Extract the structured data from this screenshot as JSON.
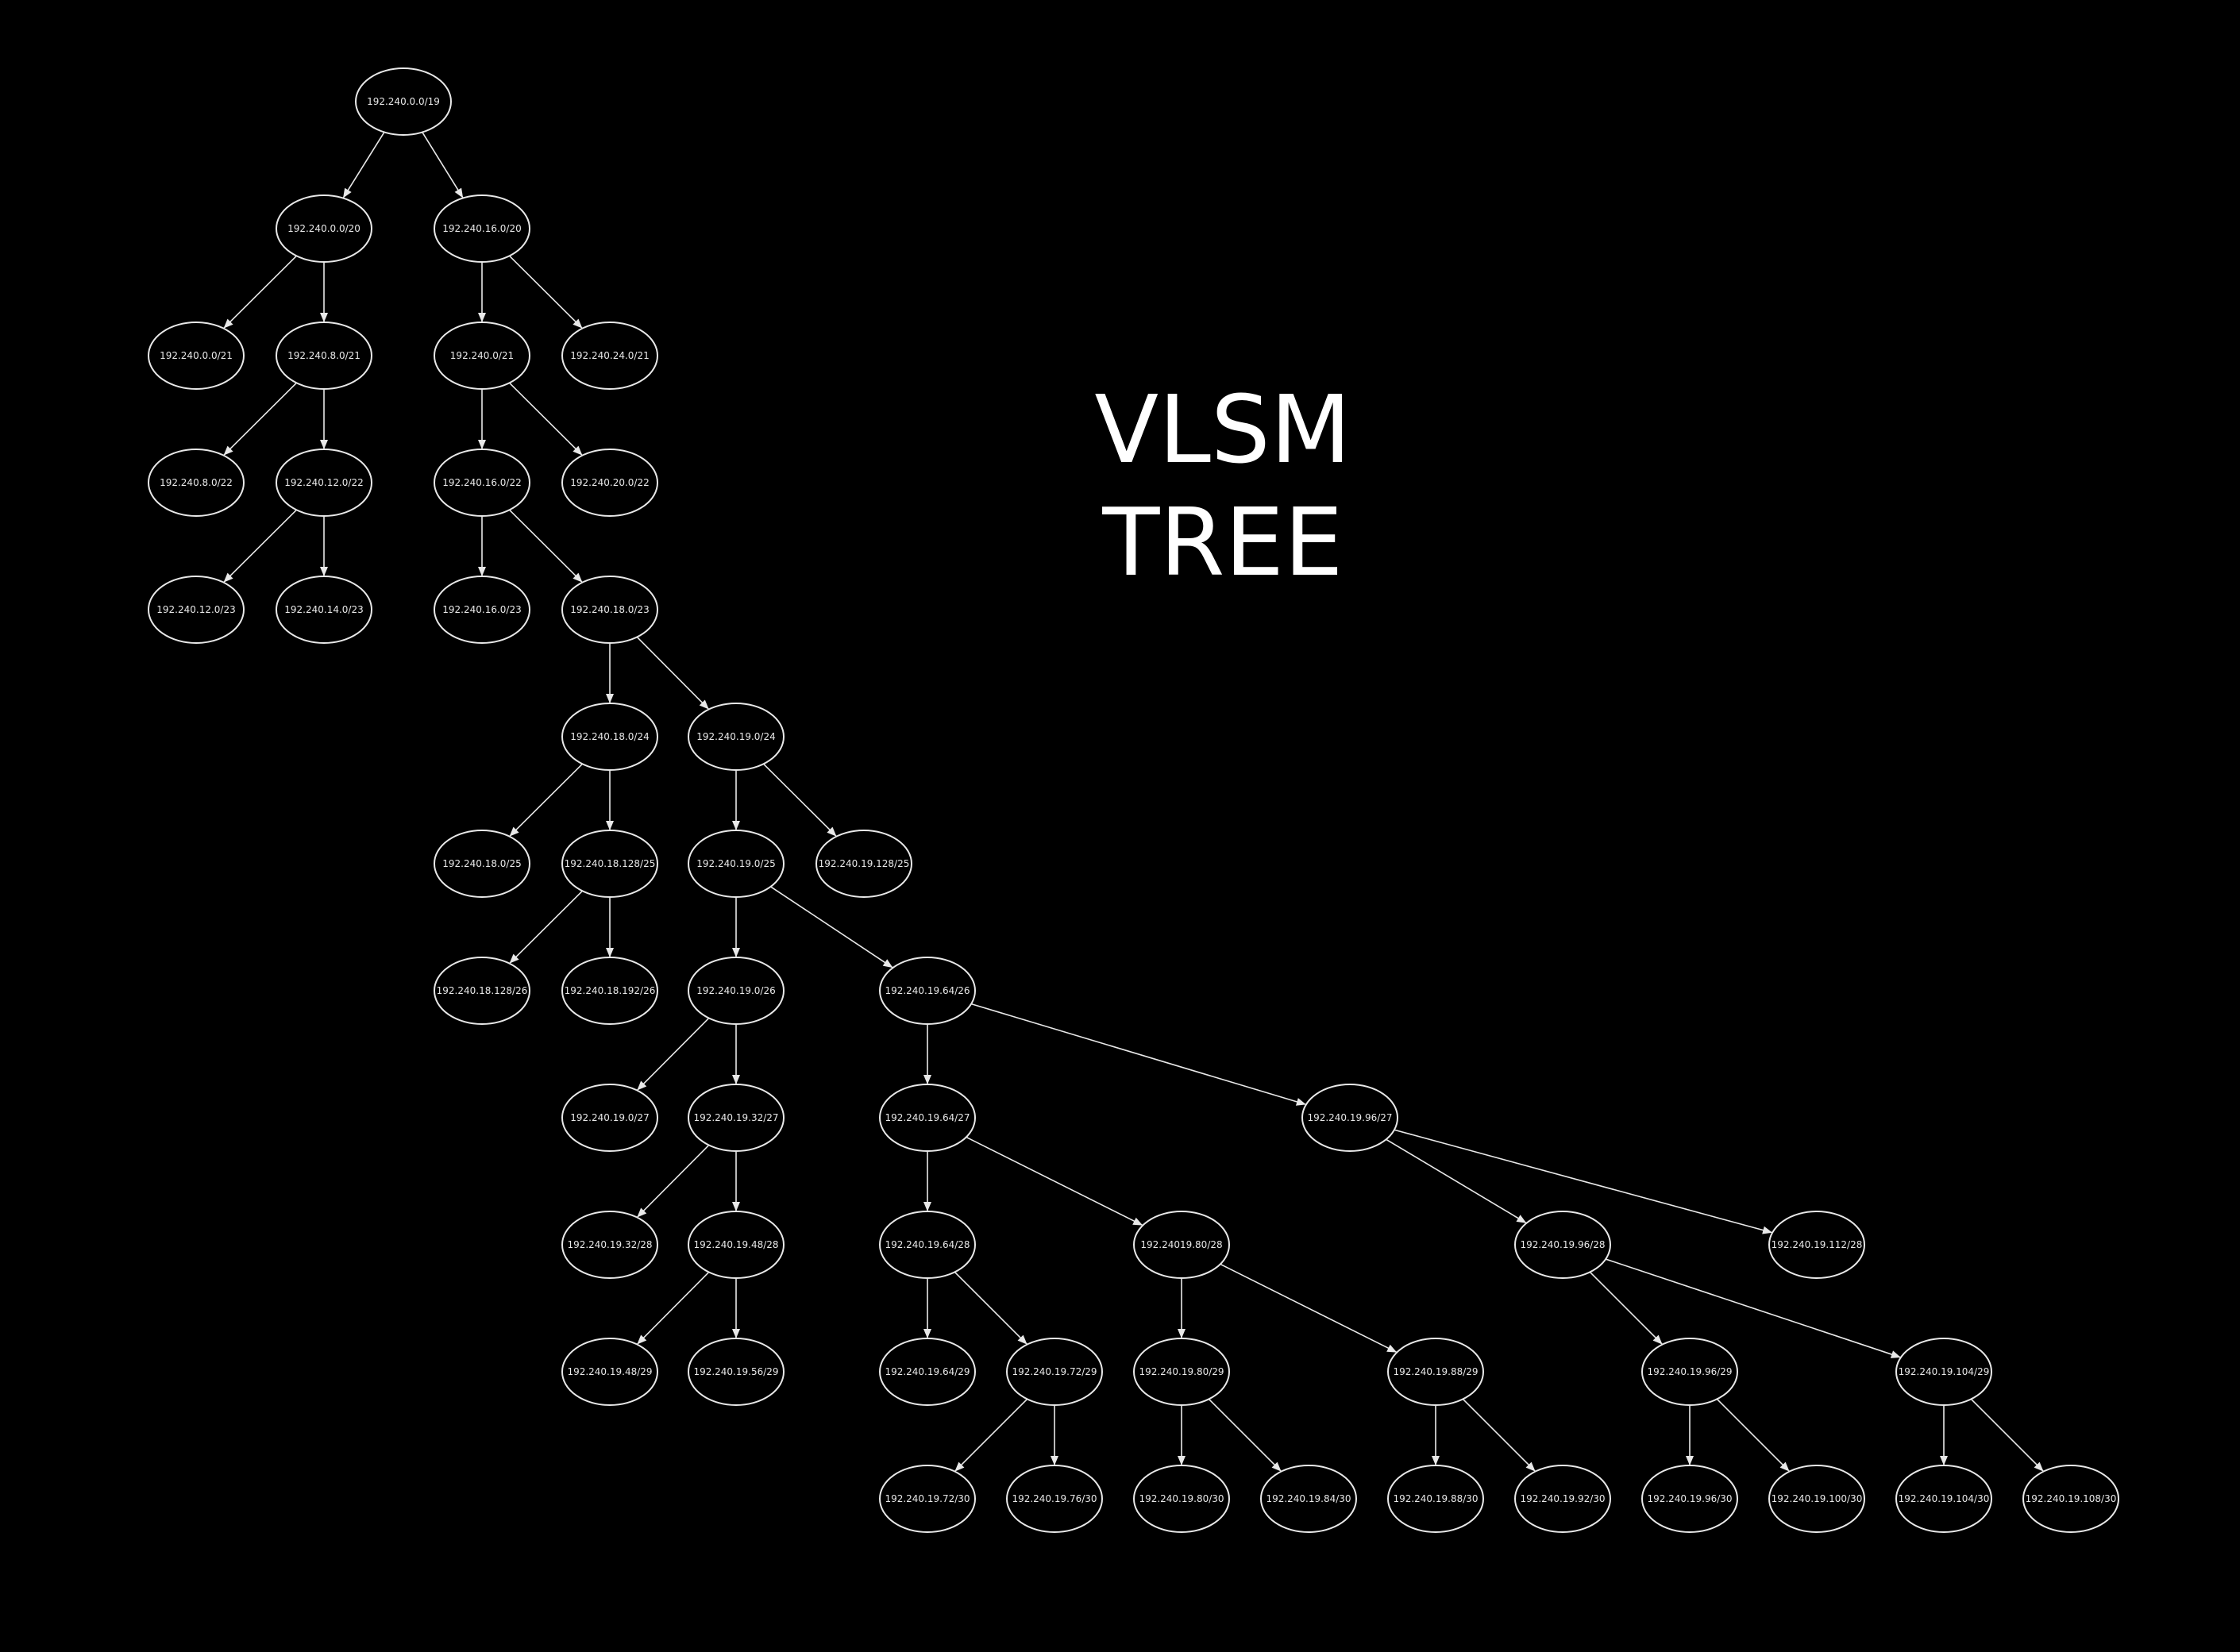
{
  "title": {
    "line1": "VLSM",
    "line2": "TREE"
  },
  "colors": {
    "background": "#000000",
    "stroke": "#e8e8e8",
    "text": "#ffffff"
  },
  "nodes": [
    {
      "id": "n0",
      "label": "192.240.0.0/19"
    },
    {
      "id": "n1",
      "label": "192.240.0.0/20"
    },
    {
      "id": "n2",
      "label": "192.240.16.0/20"
    },
    {
      "id": "n3",
      "label": "192.240.0.0/21"
    },
    {
      "id": "n4",
      "label": "192.240.8.0/21"
    },
    {
      "id": "n5",
      "label": "192.240.0/21"
    },
    {
      "id": "n6",
      "label": "192.240.24.0/21"
    },
    {
      "id": "n7",
      "label": "192.240.8.0/22"
    },
    {
      "id": "n8",
      "label": "192.240.12.0/22"
    },
    {
      "id": "n9",
      "label": "192.240.16.0/22"
    },
    {
      "id": "n10",
      "label": "192.240.20.0/22"
    },
    {
      "id": "n11",
      "label": "192.240.12.0/23"
    },
    {
      "id": "n12",
      "label": "192.240.14.0/23"
    },
    {
      "id": "n13",
      "label": "192.240.16.0/23"
    },
    {
      "id": "n14",
      "label": "192.240.18.0/23"
    },
    {
      "id": "n15",
      "label": "192.240.18.0/24"
    },
    {
      "id": "n16",
      "label": "192.240.19.0/24"
    },
    {
      "id": "n17",
      "label": "192.240.18.0/25"
    },
    {
      "id": "n18",
      "label": "192.240.18.128/25"
    },
    {
      "id": "n19",
      "label": "192.240.19.0/25"
    },
    {
      "id": "n20",
      "label": "192.240.19.128/25"
    },
    {
      "id": "n21",
      "label": "192.240.18.128/26"
    },
    {
      "id": "n22",
      "label": "192.240.18.192/26"
    },
    {
      "id": "n23",
      "label": "192.240.19.0/26"
    },
    {
      "id": "n24",
      "label": "192.240.19.64/26"
    },
    {
      "id": "n25",
      "label": "192.240.19.0/27"
    },
    {
      "id": "n26",
      "label": "192.240.19.32/27"
    },
    {
      "id": "n27",
      "label": "192.240.19.64/27"
    },
    {
      "id": "n28",
      "label": "192.240.19.96/27"
    },
    {
      "id": "n29",
      "label": "192.240.19.32/28"
    },
    {
      "id": "n30",
      "label": "192.240.19.48/28"
    },
    {
      "id": "n31",
      "label": "192.240.19.64/28"
    },
    {
      "id": "n32",
      "label": "192.24019.80/28"
    },
    {
      "id": "n33",
      "label": "192.240.19.96/28"
    },
    {
      "id": "n34",
      "label": "192.240.19.112/28"
    },
    {
      "id": "n35",
      "label": "192.240.19.48/29"
    },
    {
      "id": "n36",
      "label": "192.240.19.56/29"
    },
    {
      "id": "n37",
      "label": "192.240.19.64/29"
    },
    {
      "id": "n38",
      "label": "192.240.19.72/29"
    },
    {
      "id": "n39",
      "label": "192.240.19.80/29"
    },
    {
      "id": "n40",
      "label": "192.240.19.88/29"
    },
    {
      "id": "n41",
      "label": "192.240.19.96/29"
    },
    {
      "id": "n42",
      "label": "192.240.19.104/29"
    },
    {
      "id": "n43",
      "label": "192.240.19.72/30"
    },
    {
      "id": "n44",
      "label": "192.240.19.76/30"
    },
    {
      "id": "n45",
      "label": "192.240.19.80/30"
    },
    {
      "id": "n46",
      "label": "192.240.19.84/30"
    },
    {
      "id": "n47",
      "label": "192.240.19.88/30"
    },
    {
      "id": "n48",
      "label": "192.240.19.92/30"
    },
    {
      "id": "n49",
      "label": "192.240.19.96/30"
    },
    {
      "id": "n50",
      "label": "192.240.19.100/30"
    },
    {
      "id": "n51",
      "label": "192.240.19.104/30"
    },
    {
      "id": "n52",
      "label": "192.240.19.108/30"
    }
  ],
  "edges": [
    [
      "n0",
      "n1"
    ],
    [
      "n0",
      "n2"
    ],
    [
      "n1",
      "n3"
    ],
    [
      "n1",
      "n4"
    ],
    [
      "n2",
      "n5"
    ],
    [
      "n2",
      "n6"
    ],
    [
      "n4",
      "n7"
    ],
    [
      "n4",
      "n8"
    ],
    [
      "n5",
      "n9"
    ],
    [
      "n5",
      "n10"
    ],
    [
      "n8",
      "n11"
    ],
    [
      "n8",
      "n12"
    ],
    [
      "n9",
      "n13"
    ],
    [
      "n9",
      "n14"
    ],
    [
      "n14",
      "n15"
    ],
    [
      "n14",
      "n16"
    ],
    [
      "n15",
      "n17"
    ],
    [
      "n15",
      "n18"
    ],
    [
      "n16",
      "n19"
    ],
    [
      "n16",
      "n20"
    ],
    [
      "n18",
      "n21"
    ],
    [
      "n18",
      "n22"
    ],
    [
      "n19",
      "n23"
    ],
    [
      "n19",
      "n24"
    ],
    [
      "n23",
      "n25"
    ],
    [
      "n23",
      "n26"
    ],
    [
      "n24",
      "n27"
    ],
    [
      "n24",
      "n28"
    ],
    [
      "n26",
      "n29"
    ],
    [
      "n26",
      "n30"
    ],
    [
      "n27",
      "n31"
    ],
    [
      "n27",
      "n32"
    ],
    [
      "n28",
      "n33"
    ],
    [
      "n28",
      "n34"
    ],
    [
      "n30",
      "n35"
    ],
    [
      "n30",
      "n36"
    ],
    [
      "n31",
      "n37"
    ],
    [
      "n31",
      "n38"
    ],
    [
      "n32",
      "n39"
    ],
    [
      "n32",
      "n40"
    ],
    [
      "n33",
      "n41"
    ],
    [
      "n33",
      "n42"
    ],
    [
      "n38",
      "n43"
    ],
    [
      "n38",
      "n44"
    ],
    [
      "n39",
      "n45"
    ],
    [
      "n39",
      "n46"
    ],
    [
      "n40",
      "n47"
    ],
    [
      "n40",
      "n48"
    ],
    [
      "n41",
      "n49"
    ],
    [
      "n41",
      "n50"
    ],
    [
      "n42",
      "n51"
    ],
    [
      "n42",
      "n52"
    ]
  ]
}
